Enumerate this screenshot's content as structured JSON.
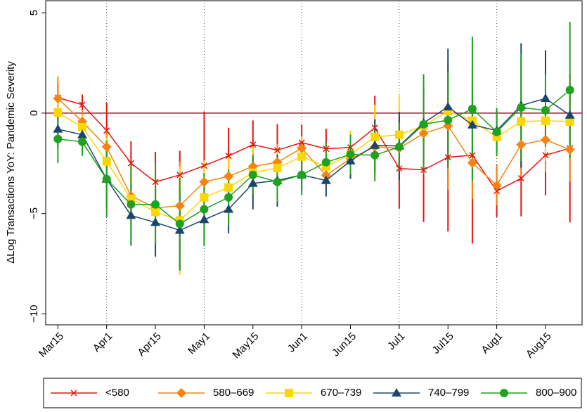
{
  "chart_data": {
    "type": "line",
    "y_label": "ΔLog Transactions YoY: Pandemic Severity",
    "categories": [
      "Mar15",
      null,
      "Apr1",
      null,
      "Apr15",
      null,
      "May1",
      null,
      "May15",
      null,
      "Jun1",
      null,
      "Jun15",
      null,
      "Jul1",
      null,
      "Jul15",
      null,
      "Aug1",
      null,
      "Aug15",
      null
    ],
    "ylim": [
      -10.55,
      5.6
    ],
    "yticks": [
      5,
      0,
      {
        "value": -5,
        "label": "−5"
      },
      {
        "value": -10,
        "label": "−10"
      }
    ],
    "vlines": [
      "Apr1",
      "May1",
      "Jun1",
      "Jul1",
      "Aug1"
    ],
    "hline": {
      "value": 0,
      "color": "#a3122b"
    },
    "legend": "bottom",
    "series": [
      {
        "name": "<580",
        "color": "#e8130f",
        "marker": "x",
        "values": [
          0.77,
          0.42,
          -0.87,
          -2.5,
          -3.43,
          -3.08,
          -2.62,
          -2.13,
          -1.57,
          -1.85,
          -1.47,
          -1.78,
          -1.71,
          -0.73,
          -2.76,
          -2.83,
          -2.2,
          -2.1,
          -3.88,
          -3.25,
          -2.1,
          -1.75
        ],
        "errors": [
          0.7,
          0.5,
          1.4,
          1.1,
          1.5,
          1.2,
          2.7,
          1.4,
          1.2,
          1.3,
          0.9,
          1.0,
          0.8,
          1.6,
          2.0,
          2.6,
          3.7,
          4.4,
          1.3,
          1.9,
          2.0,
          3.7
        ]
      },
      {
        "name": "580–669",
        "color": "#f5830f",
        "marker": "diamond",
        "values": [
          0.73,
          -0.42,
          -1.68,
          -4.13,
          -4.72,
          -4.62,
          -3.43,
          -3.15,
          -2.66,
          -2.45,
          -1.75,
          -3.1,
          -2.27,
          -1.68,
          -1.75,
          -1.01,
          -0.63,
          -2.48,
          -3.6,
          -1.57,
          -1.33,
          -1.82
        ],
        "errors": [
          1.1,
          0.6,
          0.8,
          1.6,
          2.1,
          2.2,
          1.1,
          0.8,
          0.8,
          0.9,
          0.6,
          0.6,
          0.9,
          1.4,
          1.5,
          2.0,
          3.2,
          1.8,
          1.0,
          1.6,
          1.6,
          1.6
        ]
      },
      {
        "name": "670–739",
        "color": "#fbd605",
        "marker": "square",
        "values": [
          0.03,
          -0.7,
          -2.41,
          -4.27,
          -4.93,
          -5.35,
          -4.2,
          -3.71,
          -2.97,
          -2.73,
          -2.17,
          -2.66,
          -2.06,
          -1.19,
          -1.08,
          -0.63,
          0.1,
          -0.38,
          -1.19,
          -0.42,
          -0.38,
          -0.42
        ],
        "errors": [
          0.7,
          0.6,
          1.2,
          1.2,
          1.8,
          2.7,
          1.8,
          1.6,
          1.3,
          0.9,
          1.0,
          1.0,
          1.2,
          1.6,
          2.0,
          1.7,
          2.3,
          2.2,
          1.0,
          1.3,
          2.0,
          1.4
        ]
      },
      {
        "name": "740–799",
        "color": "#1a466e",
        "marker": "triangle",
        "values": [
          -0.8,
          -1.08,
          -3.29,
          -5.1,
          -5.45,
          -5.84,
          -5.31,
          -4.79,
          -3.5,
          -3.36,
          -3.08,
          -3.36,
          -2.38,
          -1.61,
          -1.64,
          -0.49,
          0.31,
          -0.59,
          -0.87,
          0.38,
          0.73,
          -0.1
        ],
        "errors": [
          0.9,
          0.5,
          1.4,
          1.5,
          1.7,
          2.0,
          1.3,
          1.2,
          1.3,
          1.3,
          0.8,
          0.8,
          0.9,
          1.3,
          1.7,
          1.8,
          2.9,
          2.0,
          1.0,
          3.1,
          2.4,
          1.6
        ]
      },
      {
        "name": "800–900",
        "color": "#1fa21f",
        "marker": "circle",
        "values": [
          -1.29,
          -1.43,
          -3.29,
          -4.55,
          -4.55,
          -5.52,
          -4.79,
          -4.2,
          -3.08,
          -3.43,
          -3.08,
          -2.45,
          -2.06,
          -2.1,
          -1.68,
          -0.56,
          -0.35,
          0.21,
          -0.94,
          0.28,
          0.14,
          1.15
        ],
        "errors": [
          1.2,
          0.7,
          1.9,
          2.0,
          2.0,
          2.3,
          1.8,
          1.4,
          1.0,
          1.0,
          1.0,
          1.0,
          1.0,
          1.3,
          1.2,
          2.5,
          2.4,
          3.6,
          1.2,
          2.7,
          1.8,
          3.4
        ]
      }
    ]
  }
}
